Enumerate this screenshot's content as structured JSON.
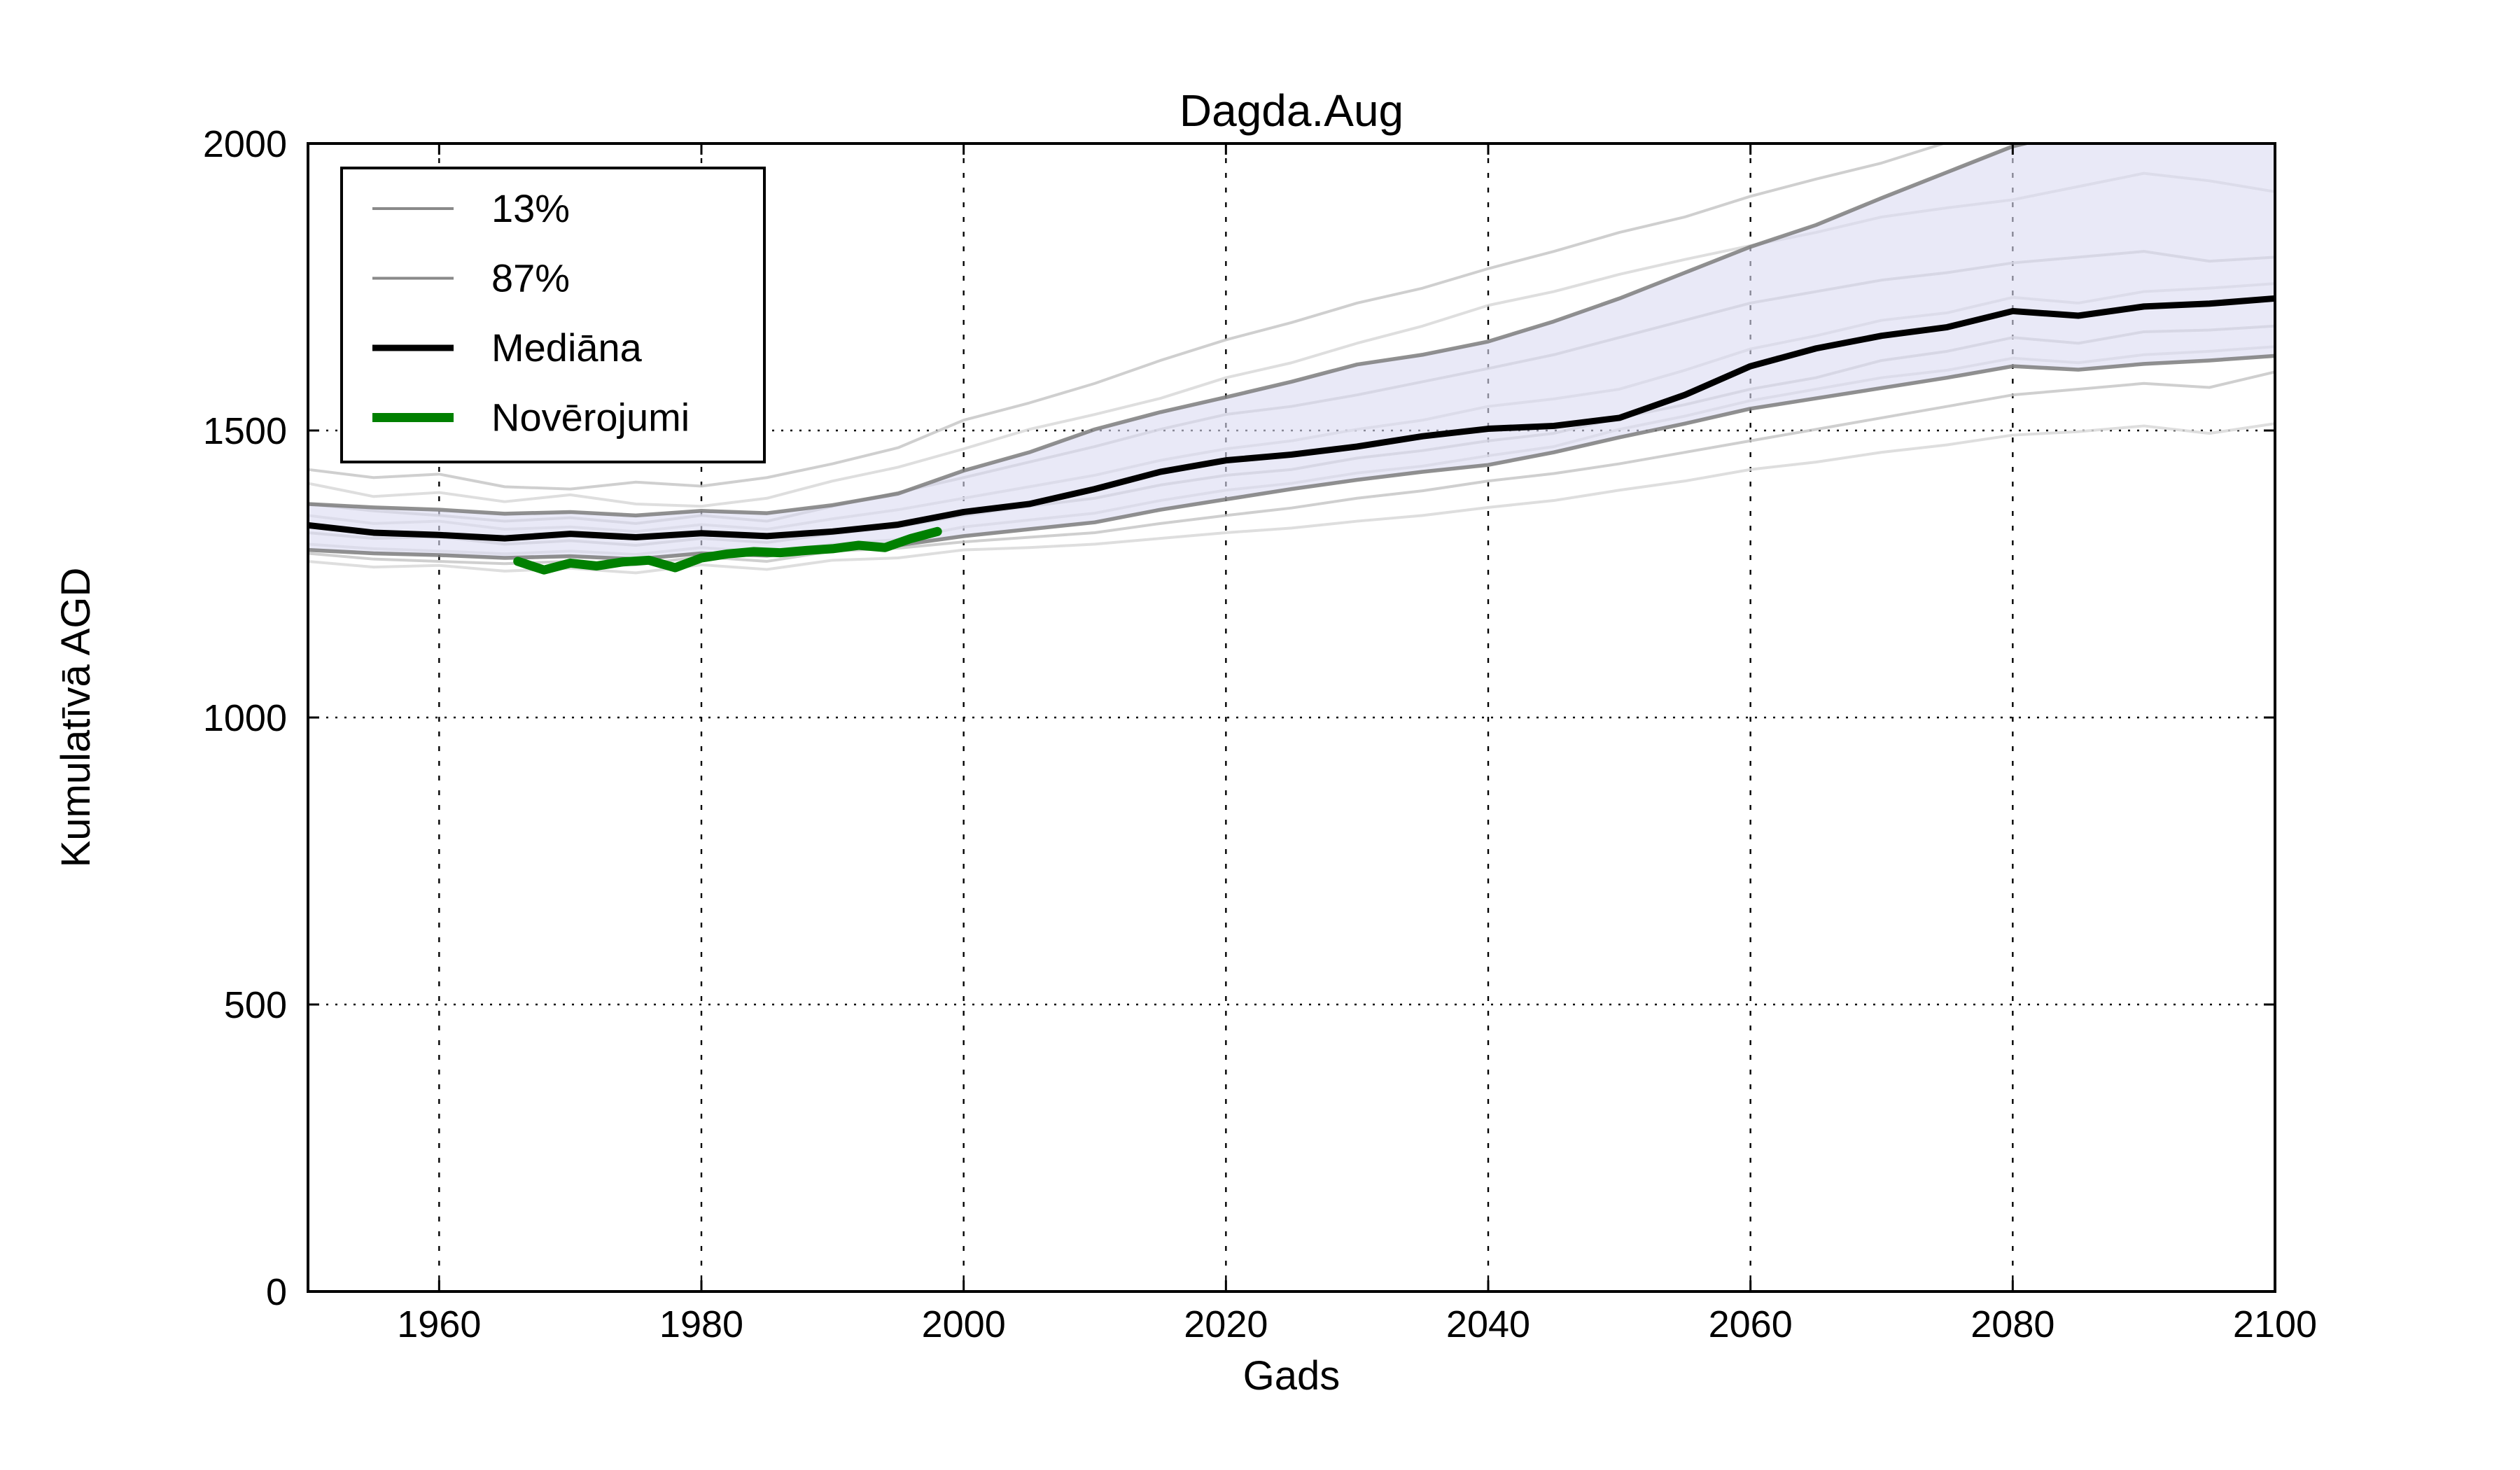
{
  "title": "Dagda.Aug",
  "axes": {
    "xlabel": "Gads",
    "ylabel": "Kumulatīvā AGD",
    "xlim": [
      1950,
      2100
    ],
    "ylim": [
      0,
      2000
    ],
    "xticks": [
      1960,
      1980,
      2000,
      2020,
      2040,
      2060,
      2080,
      2100
    ],
    "yticks": [
      0,
      500,
      1000,
      1500,
      2000
    ],
    "grid": true,
    "grid_style": "dotted"
  },
  "legend": {
    "position": "upper-left",
    "items": [
      {
        "label": "13%",
        "color": "#8a8a8a",
        "line_width": 4
      },
      {
        "label": "87%",
        "color": "#8a8a8a",
        "line_width": 4
      },
      {
        "label": "Mediāna",
        "color": "#000000",
        "line_width": 9
      },
      {
        "label": "Novērojumi",
        "color": "#008000",
        "line_width": 13
      }
    ]
  },
  "colors": {
    "background": "#ffffff",
    "frame": "#000000",
    "band_fill": "#dcdcf2",
    "band_edge": "#7d7d7d",
    "ensemble_line_a": "#c7c7c7",
    "ensemble_line_b": "#d8d8d8",
    "median_line": "#000000",
    "observations_line": "#008000",
    "gridline": "#000000"
  },
  "chart_data": {
    "type": "line",
    "title": "Dagda.Aug",
    "xlabel": "Gads",
    "ylabel": "Kumulatīvā AGD",
    "xlim": [
      1950,
      2100
    ],
    "ylim": [
      0,
      2000
    ],
    "grid": true,
    "legend_position": "upper-left",
    "x": [
      1950,
      1955,
      1960,
      1965,
      1970,
      1975,
      1980,
      1985,
      1990,
      1995,
      2000,
      2005,
      2010,
      2015,
      2020,
      2025,
      2030,
      2035,
      2040,
      2045,
      2050,
      2055,
      2060,
      2065,
      2070,
      2075,
      2080,
      2085,
      2090,
      2095,
      2100
    ],
    "band": {
      "upper_name": "87%",
      "lower_name": "13%",
      "upper": [
        1372,
        1366,
        1362,
        1355,
        1358,
        1352,
        1360,
        1356,
        1370,
        1390,
        1430,
        1462,
        1502,
        1532,
        1558,
        1585,
        1615,
        1632,
        1655,
        1690,
        1730,
        1775,
        1820,
        1858,
        1905,
        1950,
        1995,
        2022,
        2048,
        2058,
        2068
      ],
      "lower": [
        1292,
        1286,
        1283,
        1278,
        1281,
        1276,
        1286,
        1282,
        1294,
        1300,
        1316,
        1328,
        1340,
        1362,
        1380,
        1398,
        1414,
        1428,
        1440,
        1462,
        1488,
        1512,
        1538,
        1556,
        1574,
        1592,
        1612,
        1606,
        1616,
        1622,
        1630
      ]
    },
    "series": [
      {
        "name": "Mediāna",
        "role": "median",
        "values": [
          1335,
          1322,
          1318,
          1312,
          1320,
          1314,
          1321,
          1316,
          1324,
          1336,
          1358,
          1372,
          1398,
          1428,
          1448,
          1458,
          1472,
          1490,
          1503,
          1508,
          1522,
          1562,
          1612,
          1643,
          1665,
          1680,
          1708,
          1700,
          1716,
          1721,
          1730
        ]
      },
      {
        "name": "Novērojumi",
        "role": "observations",
        "x": [
          1966,
          1968,
          1970,
          1972,
          1974,
          1976,
          1978,
          1980,
          1982,
          1984,
          1986,
          1988,
          1990,
          1992,
          1994,
          1996,
          1998
        ],
        "values": [
          1272,
          1257,
          1269,
          1264,
          1271,
          1274,
          1261,
          1278,
          1285,
          1289,
          1287,
          1291,
          1294,
          1300,
          1296,
          1312,
          1324
        ]
      }
    ],
    "ensemble_members": [
      [
        1432,
        1418,
        1424,
        1402,
        1398,
        1410,
        1403,
        1418,
        1442,
        1470,
        1518,
        1548,
        1582,
        1622,
        1658,
        1688,
        1722,
        1748,
        1782,
        1812,
        1845,
        1872,
        1908,
        1938,
        1966,
        2002,
        2032,
        2055,
        2075,
        2085,
        2092
      ],
      [
        1408,
        1385,
        1392,
        1376,
        1388,
        1372,
        1368,
        1382,
        1412,
        1436,
        1468,
        1502,
        1528,
        1556,
        1592,
        1618,
        1652,
        1682,
        1718,
        1742,
        1772,
        1798,
        1822,
        1845,
        1872,
        1888,
        1902,
        1925,
        1948,
        1935,
        1916
      ],
      [
        1372,
        1360,
        1352,
        1342,
        1348,
        1338,
        1352,
        1342,
        1368,
        1392,
        1418,
        1445,
        1472,
        1502,
        1528,
        1542,
        1562,
        1585,
        1608,
        1632,
        1662,
        1692,
        1722,
        1742,
        1762,
        1775,
        1792,
        1802,
        1812,
        1795,
        1802
      ],
      [
        1352,
        1338,
        1342,
        1328,
        1332,
        1324,
        1336,
        1328,
        1346,
        1362,
        1382,
        1402,
        1422,
        1448,
        1468,
        1482,
        1502,
        1518,
        1542,
        1555,
        1572,
        1605,
        1642,
        1665,
        1692,
        1705,
        1732,
        1722,
        1742,
        1748,
        1756
      ],
      [
        1322,
        1312,
        1315,
        1302,
        1308,
        1300,
        1312,
        1305,
        1320,
        1332,
        1352,
        1368,
        1382,
        1405,
        1422,
        1432,
        1452,
        1465,
        1482,
        1495,
        1522,
        1545,
        1572,
        1592,
        1622,
        1638,
        1662,
        1652,
        1672,
        1675,
        1682
      ],
      [
        1302,
        1294,
        1290,
        1285,
        1290,
        1284,
        1296,
        1288,
        1302,
        1310,
        1332,
        1344,
        1356,
        1378,
        1396,
        1408,
        1426,
        1438,
        1456,
        1472,
        1502,
        1525,
        1552,
        1572,
        1592,
        1605,
        1626,
        1618,
        1632,
        1638,
        1646
      ],
      [
        1286,
        1276,
        1272,
        1268,
        1272,
        1266,
        1280,
        1272,
        1290,
        1295,
        1306,
        1314,
        1322,
        1338,
        1352,
        1365,
        1382,
        1395,
        1412,
        1425,
        1442,
        1462,
        1482,
        1502,
        1522,
        1542,
        1562,
        1572,
        1582,
        1575,
        1602
      ],
      [
        1272,
        1262,
        1265,
        1255,
        1260,
        1252,
        1266,
        1258,
        1274,
        1278,
        1292,
        1296,
        1302,
        1312,
        1322,
        1330,
        1342,
        1352,
        1366,
        1378,
        1396,
        1412,
        1432,
        1445,
        1462,
        1475,
        1492,
        1498,
        1508,
        1495,
        1512
      ]
    ]
  }
}
